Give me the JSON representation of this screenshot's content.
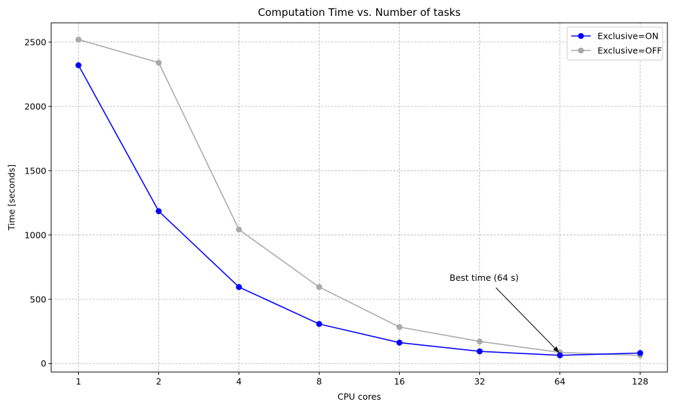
{
  "chart_data": {
    "type": "line",
    "title": "Computation Time vs. Number of tasks",
    "xlabel": "CPU cores",
    "ylabel": "Time [seconds]",
    "x_scale": "log2",
    "x": [
      1,
      2,
      4,
      8,
      16,
      32,
      64,
      128
    ],
    "x_tick_labels": [
      "1",
      "2",
      "4",
      "8",
      "16",
      "32",
      "64",
      "128"
    ],
    "xlim": [
      0.79,
      162
    ],
    "yticks": [
      0,
      500,
      1000,
      1500,
      2000,
      2500
    ],
    "ylim": [
      -66,
      2650
    ],
    "grid": true,
    "legend_position": "top-right",
    "series": [
      {
        "name": "Exclusive=ON",
        "color": "#0000ff",
        "values": [
          2320,
          1185,
          595,
          308,
          163,
          95,
          64,
          82
        ]
      },
      {
        "name": "Exclusive=OFF",
        "color": "#a9a9a9",
        "values": [
          2520,
          2340,
          1042,
          595,
          284,
          172,
          87,
          63
        ]
      }
    ],
    "annotation": {
      "text": "Best time (64 s)",
      "point_x": 64,
      "point_y": 64
    }
  }
}
